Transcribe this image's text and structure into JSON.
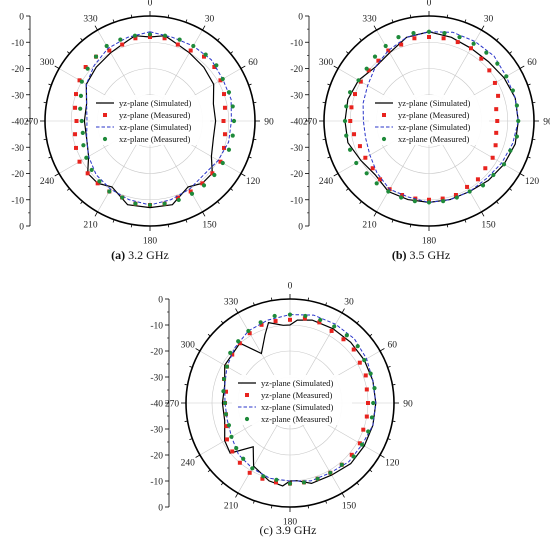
{
  "chart_data": [
    {
      "type": "polar-line",
      "caption_letter": "(a)",
      "caption_text": "3.2 GHz",
      "r_axis": {
        "ticks": [
          "0",
          "-10",
          "-20",
          "-30",
          "-40",
          "-30",
          "-20",
          "-10",
          "0"
        ],
        "range_db": [
          -40,
          0
        ]
      },
      "angle_labels": [
        "0",
        "30",
        "60",
        "90",
        "120",
        "150",
        "180",
        "210",
        "240",
        "270",
        "300",
        "330"
      ],
      "series": [
        {
          "name": "yz-plane (Simulated)",
          "style": "solid",
          "color": "#000000",
          "theta": [
            0,
            10,
            20,
            30,
            45,
            60,
            75,
            90,
            105,
            120,
            130,
            140,
            150,
            165,
            180,
            195,
            210,
            220,
            230,
            240,
            255,
            270,
            285,
            300,
            315,
            330,
            340,
            350
          ],
          "r_db": [
            -8,
            -7,
            -9,
            -10,
            -11,
            -12,
            -15,
            -15,
            -15,
            -13,
            -9,
            -9,
            -11,
            -7,
            -7,
            -7,
            -11,
            -9,
            -9,
            -13,
            -15,
            -15,
            -15,
            -12,
            -11,
            -10,
            -9,
            -7
          ]
        },
        {
          "name": "yz-plane (Measured)",
          "style": "square",
          "color": "#e8231e",
          "theta": [
            0,
            10,
            20,
            30,
            40,
            50,
            60,
            70,
            80,
            90,
            100,
            110,
            120,
            130,
            140,
            150,
            160,
            170,
            180,
            190,
            200,
            210,
            220,
            230,
            240,
            250,
            260,
            270,
            280,
            290,
            300,
            310,
            320,
            330,
            340,
            350
          ],
          "r_db": [
            -8,
            -8,
            -9,
            -9,
            -8,
            -8,
            -9,
            -10,
            -11,
            -12,
            -11,
            -10,
            -9,
            -9,
            -9,
            -9,
            -9,
            -8,
            -8,
            -8,
            -9,
            -9,
            -9,
            -9,
            -9,
            -10,
            -11,
            -12,
            -11,
            -10,
            -9,
            -8,
            -8,
            -9,
            -9,
            -8
          ]
        },
        {
          "name": "xz-plane (Simulated)",
          "style": "dashed",
          "color": "#2a35c9",
          "theta": [
            0,
            15,
            30,
            45,
            60,
            75,
            90,
            105,
            120,
            135,
            150,
            165,
            180,
            195,
            210,
            225,
            240,
            255,
            270,
            285,
            300,
            315,
            330,
            345
          ],
          "r_db": [
            -6,
            -7,
            -7,
            -7,
            -8,
            -8,
            -9,
            -9,
            -10,
            -11,
            -10,
            -9,
            -8,
            -9,
            -10,
            -11,
            -13,
            -15,
            -16,
            -15,
            -12,
            -10,
            -8,
            -7
          ]
        },
        {
          "name": "xz-plane (Measured)",
          "style": "dot",
          "color": "#1e8a3a",
          "theta": [
            0,
            10,
            20,
            30,
            40,
            50,
            60,
            70,
            80,
            90,
            100,
            110,
            120,
            130,
            140,
            150,
            160,
            170,
            180,
            190,
            200,
            210,
            220,
            230,
            240,
            250,
            260,
            270,
            280,
            290,
            300,
            310,
            320,
            330,
            340,
            350
          ],
          "r_db": [
            -7,
            -7,
            -7,
            -7,
            -7,
            -7,
            -8,
            -8,
            -8,
            -8,
            -8,
            -8,
            -8,
            -8,
            -8,
            -8,
            -8,
            -8,
            -8,
            -8,
            -9,
            -9,
            -10,
            -11,
            -12,
            -13,
            -14,
            -14,
            -13,
            -12,
            -10,
            -9,
            -8,
            -7,
            -7,
            -7
          ]
        }
      ]
    },
    {
      "type": "polar-line",
      "caption_letter": "(b)",
      "caption_text": "3.5 GHz",
      "r_axis": {
        "ticks": [
          "0",
          "-10",
          "-20",
          "-30",
          "-40",
          "-30",
          "-20",
          "-10",
          "0"
        ],
        "range_db": [
          -40,
          0
        ]
      },
      "angle_labels": [
        "0",
        "30",
        "60",
        "90",
        "120",
        "150",
        "180",
        "210",
        "240",
        "270",
        "300",
        "330"
      ],
      "series": [
        {
          "name": "yz-plane (Simulated)",
          "style": "solid",
          "color": "#000000",
          "theta": [
            0,
            15,
            30,
            45,
            60,
            75,
            90,
            105,
            120,
            135,
            150,
            165,
            180,
            195,
            210,
            225,
            240,
            255,
            270,
            285,
            300,
            315,
            330,
            345
          ],
          "r_db": [
            -6,
            -7,
            -8,
            -8,
            -7,
            -6,
            -6,
            -6,
            -7,
            -8,
            -9,
            -9,
            -9,
            -9,
            -9,
            -11,
            -10,
            -8,
            -8,
            -8,
            -9,
            -11,
            -10,
            -7
          ]
        },
        {
          "name": "yz-plane (Measured)",
          "style": "square",
          "color": "#e8231e",
          "theta": [
            0,
            10,
            20,
            30,
            40,
            50,
            60,
            70,
            80,
            90,
            100,
            110,
            120,
            130,
            140,
            150,
            160,
            170,
            180,
            190,
            200,
            210,
            220,
            230,
            240,
            250,
            260,
            270,
            280,
            290,
            300,
            310,
            320,
            330,
            340,
            350
          ],
          "r_db": [
            -8,
            -8,
            -8,
            -8,
            -9,
            -10,
            -11,
            -12,
            -14,
            -14,
            -14,
            -13,
            -12,
            -12,
            -11,
            -11,
            -10,
            -10,
            -10,
            -10,
            -10,
            -10,
            -11,
            -12,
            -12,
            -12,
            -11,
            -10,
            -10,
            -10,
            -10,
            -10,
            -10,
            -9,
            -9,
            -8
          ]
        },
        {
          "name": "xz-plane (Simulated)",
          "style": "dashed",
          "color": "#2a35c9",
          "theta": [
            0,
            15,
            30,
            45,
            60,
            75,
            90,
            105,
            120,
            135,
            150,
            165,
            180,
            195,
            210,
            225,
            240,
            255,
            270,
            285,
            300,
            315,
            330,
            345
          ],
          "r_db": [
            -6,
            -5,
            -5,
            -5,
            -6,
            -6,
            -6,
            -7,
            -8,
            -9,
            -9,
            -9,
            -9,
            -10,
            -10,
            -12,
            -14,
            -15,
            -15,
            -14,
            -13,
            -11,
            -9,
            -7
          ]
        },
        {
          "name": "xz-plane (Measured)",
          "style": "dot",
          "color": "#1e8a3a",
          "theta": [
            0,
            10,
            20,
            30,
            40,
            50,
            60,
            70,
            80,
            90,
            100,
            110,
            120,
            130,
            140,
            150,
            160,
            170,
            180,
            190,
            200,
            210,
            220,
            230,
            240,
            250,
            260,
            270,
            280,
            290,
            300,
            310,
            320,
            330,
            340,
            350
          ],
          "r_db": [
            -6,
            -6,
            -6,
            -6,
            -6,
            -6,
            -6,
            -6,
            -6,
            -6,
            -6,
            -7,
            -7,
            -8,
            -8,
            -9,
            -9,
            -9,
            -9,
            -9,
            -9,
            -9,
            -9,
            -9,
            -8,
            -8,
            -8,
            -8,
            -8,
            -8,
            -9,
            -9,
            -8,
            -7,
            -6,
            -6
          ]
        }
      ]
    },
    {
      "type": "polar-line",
      "caption_letter": "",
      "caption_text": "(c) 3.9 GHz",
      "r_axis": {
        "ticks": [
          "0",
          "-10",
          "-20",
          "-30",
          "-40",
          "-30",
          "-20",
          "-10",
          "0"
        ],
        "range_db": [
          -40,
          0
        ]
      },
      "angle_labels": [
        "0",
        "30",
        "60",
        "90",
        "120",
        "150",
        "180",
        "210",
        "240",
        "270",
        "300",
        "330"
      ],
      "series": [
        {
          "name": "yz-plane (Simulated)",
          "style": "solid",
          "color": "#000000",
          "theta": [
            0,
            5,
            15,
            30,
            45,
            60,
            75,
            90,
            105,
            120,
            135,
            150,
            165,
            175,
            180,
            185,
            195,
            210,
            220,
            230,
            240,
            255,
            270,
            285,
            300,
            320,
            330,
            340,
            345,
            355
          ],
          "r_db": [
            -10,
            -8,
            -7,
            -7,
            -7,
            -7,
            -7,
            -7,
            -7,
            -7,
            -7,
            -8,
            -8,
            -10,
            -10,
            -8,
            -9,
            -12,
            -18,
            -10,
            -11,
            -14,
            -14,
            -14,
            -11,
            -10,
            -18,
            -12,
            -8,
            -10
          ]
        },
        {
          "name": "yz-plane (Measured)",
          "style": "square",
          "color": "#e8231e",
          "theta": [
            0,
            10,
            20,
            30,
            40,
            50,
            60,
            70,
            80,
            90,
            100,
            110,
            120,
            130,
            140,
            150,
            160,
            170,
            180,
            190,
            200,
            210,
            220,
            230,
            240,
            250,
            260,
            270,
            280,
            290,
            300,
            310,
            320,
            330,
            340,
            350
          ],
          "r_db": [
            -8,
            -7,
            -7,
            -8,
            -8,
            -8,
            -9,
            -9,
            -10,
            -10,
            -10,
            -10,
            -9,
            -9,
            -9,
            -9,
            -9,
            -9,
            -9,
            -9,
            -9,
            -9,
            -10,
            -11,
            -12,
            -14,
            -15,
            -15,
            -15,
            -13,
            -12,
            -11,
            -10,
            -9,
            -8,
            -8
          ]
        },
        {
          "name": "xz-plane (Simulated)",
          "style": "dashed",
          "color": "#2a35c9",
          "theta": [
            0,
            15,
            30,
            45,
            60,
            75,
            90,
            105,
            120,
            135,
            150,
            165,
            180,
            195,
            210,
            225,
            240,
            255,
            270,
            285,
            300,
            315,
            330,
            345
          ],
          "r_db": [
            -6,
            -5,
            -5,
            -5,
            -6,
            -7,
            -7,
            -7,
            -8,
            -8,
            -9,
            -9,
            -10,
            -10,
            -11,
            -12,
            -14,
            -15,
            -15,
            -14,
            -12,
            -10,
            -8,
            -7
          ]
        },
        {
          "name": "xz-plane (Measured)",
          "style": "dot",
          "color": "#1e8a3a",
          "theta": [
            0,
            10,
            20,
            30,
            40,
            50,
            60,
            70,
            80,
            90,
            100,
            110,
            120,
            130,
            140,
            150,
            160,
            170,
            180,
            190,
            200,
            210,
            220,
            230,
            240,
            250,
            260,
            270,
            280,
            290,
            300,
            310,
            320,
            330,
            340,
            350
          ],
          "r_db": [
            -6,
            -6,
            -6,
            -6,
            -6,
            -6,
            -7,
            -7,
            -7,
            -8,
            -8,
            -8,
            -8,
            -8,
            -9,
            -9,
            -9,
            -9,
            -9,
            -10,
            -10,
            -11,
            -12,
            -13,
            -14,
            -15,
            -15,
            -15,
            -14,
            -13,
            -12,
            -10,
            -9,
            -8,
            -7,
            -6
          ]
        }
      ]
    }
  ]
}
